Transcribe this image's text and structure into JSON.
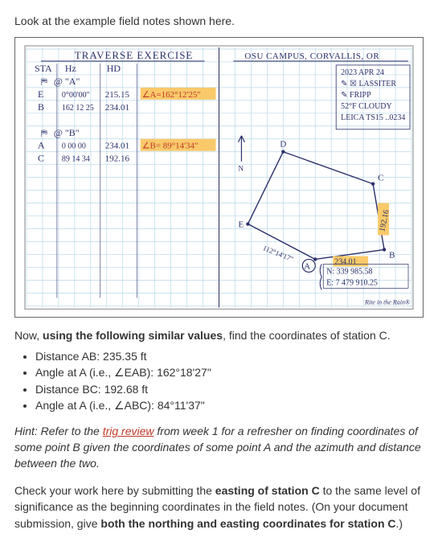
{
  "intro": "Look at the example field notes shown here.",
  "figure": {
    "bg": "#ffffff",
    "grid_color": "#b8d8e8",
    "ink_color": "#2a2f6a",
    "highlight_color": "#f9c96a",
    "red_ink": "#c0392b",
    "left_title": "TRAVERSE EXERCISE",
    "col_headers": [
      "STA",
      "Hz",
      "HD"
    ],
    "rows": [
      {
        "bs": "@ \"A\""
      },
      {
        "sta": "E",
        "hz": "0°00'00\"",
        "hd": "215.15",
        "ang": "∠A=162°12'25\""
      },
      {
        "sta": "B",
        "hz": "162 12 25",
        "hd": "234.01"
      },
      {
        "blank": true
      },
      {
        "bs": "@ \"B\""
      },
      {
        "sta": "A",
        "hz": "0 00 00",
        "hd": "234.01",
        "ang": "∠B= 89°14'34\""
      },
      {
        "sta": "C",
        "hz": "89 14 34",
        "hd": "192.16"
      }
    ],
    "right_title": "OSU CAMPUS, CORVALLIS, OR",
    "meta": [
      "2023 APR 24",
      "✎ ☒ LASSITER",
      "✎ FRIPP",
      "52°F CLOUDY",
      "LEICA TS15 ..0234"
    ],
    "labels": {
      "D": "D",
      "E": "E",
      "C": "C",
      "B": "B",
      "A": "A"
    },
    "edge_labels": {
      "AB": "234.01",
      "BC": "192.16",
      "EA": "112°14'17\""
    },
    "start_coords": {
      "N": "N: 339 985.58",
      "E": "E: 7 479 910.25"
    },
    "footnote": "Rite in the Rain®"
  },
  "prompt_prefix": "Now, ",
  "prompt_bold": "using the following similar values",
  "prompt_suffix": ", find the coordinates of station C.",
  "givens": [
    "Distance AB: 235.35 ft",
    "Angle at A (i.e., ∠EAB): 162°18'27\"",
    "Distance BC: 192.68 ft",
    "Angle at A (i.e., ∠ABC): 84°11'37\""
  ],
  "hint_prefix": "Hint: Refer to the ",
  "hint_link": "trig review",
  "hint_suffix": " from week 1 for a refresher on finding coordinates of some point B given the coordinates of some point A and the azimuth and distance between the two.",
  "check_prefix": "Check your work here by submitting the ",
  "check_b1": "easting of station C",
  "check_mid": " to the same level of significance as the beginning coordinates in the field notes. (On your document submission, give ",
  "check_b2": "both the northing and easting coordinates for station C",
  "check_suffix": ".)"
}
